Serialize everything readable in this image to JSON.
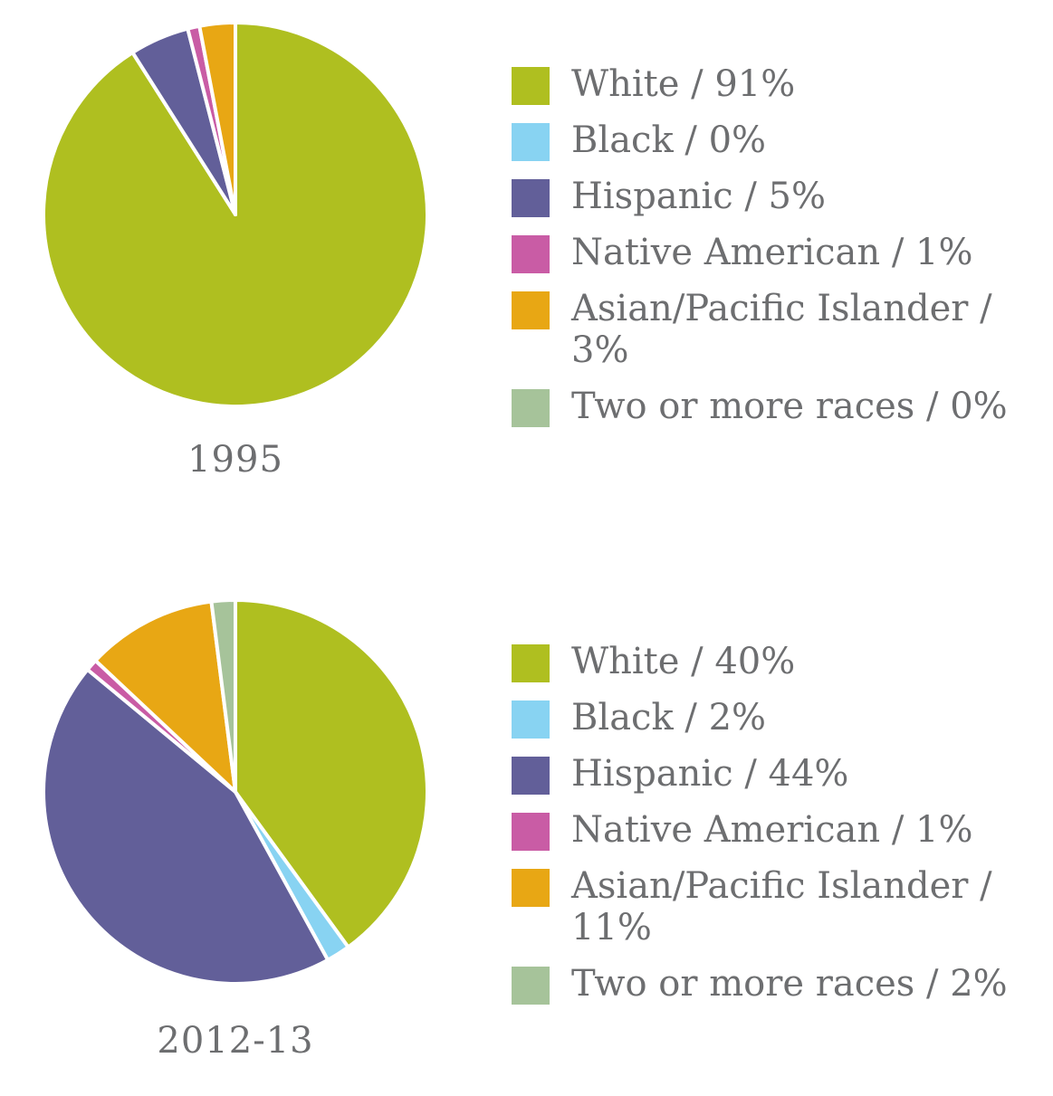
{
  "chart_data": [
    {
      "type": "pie",
      "caption": "1995",
      "slices": [
        {
          "label": "White / 91%",
          "value": 91,
          "color": "#afbf20"
        },
        {
          "label": "Black / 0%",
          "value": 0,
          "color": "#88d3f2"
        },
        {
          "label": "Hispanic / 5%",
          "value": 5,
          "color": "#625f99"
        },
        {
          "label": "Native American / 1%",
          "value": 1,
          "color": "#c95ca5"
        },
        {
          "label": "Asian/Pacific Islander / 3%",
          "value": 3,
          "color": "#e8a714"
        },
        {
          "label": "Two or more races / 0%",
          "value": 0,
          "color": "#a6c39a"
        }
      ]
    },
    {
      "type": "pie",
      "caption": "2012-13",
      "slices": [
        {
          "label": "White / 40%",
          "value": 40,
          "color": "#afbf20"
        },
        {
          "label": "Black / 2%",
          "value": 2,
          "color": "#88d3f2"
        },
        {
          "label": "Hispanic / 44%",
          "value": 44,
          "color": "#625f99"
        },
        {
          "label": "Native American / 1%",
          "value": 1,
          "color": "#c95ca5"
        },
        {
          "label": "Asian/Pacific Islander / 11%",
          "value": 11,
          "color": "#e8a714"
        },
        {
          "label": "Two or more races / 2%",
          "value": 2,
          "color": "#a6c39a"
        }
      ]
    }
  ]
}
